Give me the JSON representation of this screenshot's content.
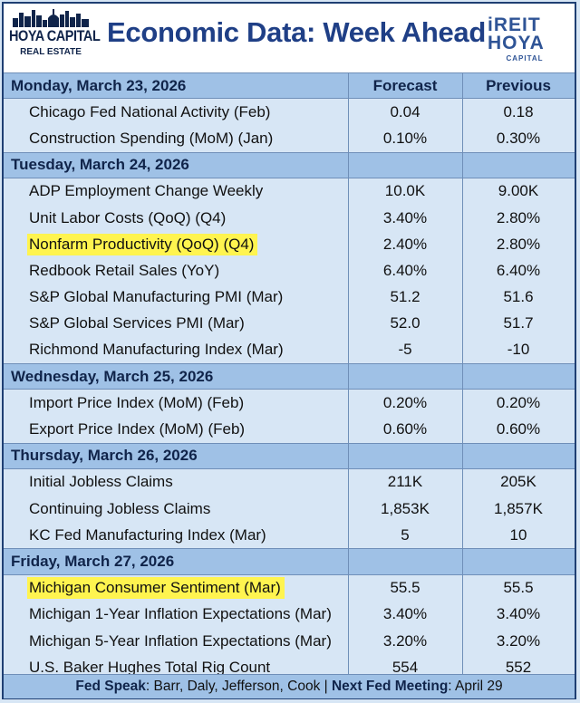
{
  "header": {
    "left_logo": {
      "line1": "HOYA CAPITAL",
      "line2": "REAL ESTATE"
    },
    "title": "Economic Data: Week Ahead",
    "right_logo": {
      "line1": "iREIT",
      "line2": "HOYA",
      "line3": "CAPITAL"
    }
  },
  "columns": {
    "forecast": "Forecast",
    "previous": "Previous"
  },
  "days": [
    {
      "date": "Monday, March 23, 2026",
      "events": [
        {
          "name": "Chicago Fed National Activity (Feb)",
          "forecast": "0.04",
          "previous": "0.18",
          "highlight": false
        },
        {
          "name": "Construction Spending (MoM) (Jan)",
          "forecast": "0.10%",
          "previous": "0.30%",
          "highlight": false
        }
      ]
    },
    {
      "date": "Tuesday, March 24, 2026",
      "events": [
        {
          "name": "ADP Employment Change Weekly",
          "forecast": "10.0K",
          "previous": "9.00K",
          "highlight": false
        },
        {
          "name": "Unit Labor Costs (QoQ) (Q4)",
          "forecast": "3.40%",
          "previous": "2.80%",
          "highlight": false
        },
        {
          "name": "Nonfarm Productivity (QoQ) (Q4)",
          "forecast": "2.40%",
          "previous": "2.80%",
          "highlight": true
        },
        {
          "name": "Redbook Retail Sales (YoY)",
          "forecast": "6.40%",
          "previous": "6.40%",
          "highlight": false
        },
        {
          "name": "S&P Global Manufacturing PMI (Mar)",
          "forecast": "51.2",
          "previous": "51.6",
          "highlight": false
        },
        {
          "name": "S&P Global Services PMI (Mar)",
          "forecast": "52.0",
          "previous": "51.7",
          "highlight": false
        },
        {
          "name": "Richmond Manufacturing Index (Mar)",
          "forecast": "-5",
          "previous": "-10",
          "highlight": false
        }
      ]
    },
    {
      "date": "Wednesday, March 25, 2026",
      "events": [
        {
          "name": "Import Price Index (MoM) (Feb)",
          "forecast": "0.20%",
          "previous": "0.20%",
          "highlight": false
        },
        {
          "name": "Export Price Index (MoM) (Feb)",
          "forecast": "0.60%",
          "previous": "0.60%",
          "highlight": false
        }
      ]
    },
    {
      "date": "Thursday, March 26, 2026",
      "events": [
        {
          "name": "Initial Jobless Claims",
          "forecast": "211K",
          "previous": "205K",
          "highlight": false
        },
        {
          "name": "Continuing Jobless Claims",
          "forecast": "1,853K",
          "previous": "1,857K",
          "highlight": false
        },
        {
          "name": "KC Fed Manufacturing Index (Mar)",
          "forecast": "5",
          "previous": "10",
          "highlight": false
        }
      ]
    },
    {
      "date": "Friday, March 27, 2026",
      "events": [
        {
          "name": "Michigan Consumer Sentiment (Mar)",
          "forecast": "55.5",
          "previous": "55.5",
          "highlight": true
        },
        {
          "name": "Michigan 1-Year Inflation Expectations (Mar)",
          "forecast": "3.40%",
          "previous": "3.40%",
          "highlight": false
        },
        {
          "name": "Michigan 5-Year Inflation Expectations (Mar)",
          "forecast": "3.20%",
          "previous": "3.20%",
          "highlight": false
        },
        {
          "name": "U.S. Baker Hughes Total Rig Count",
          "forecast": "554",
          "previous": "552",
          "highlight": false
        }
      ]
    }
  ],
  "footer": {
    "fed_speak_label": "Fed Speak",
    "fed_speak_value": ": Barr, Daly, Jefferson, Cook | ",
    "next_meeting_label": "Next Fed Meeting",
    "next_meeting_value": ": April 29"
  },
  "colors": {
    "title": "#1f3f86",
    "day_row_bg": "#9fc1e6",
    "body_bg": "#d7e6f5",
    "highlight": "#fff44f"
  }
}
